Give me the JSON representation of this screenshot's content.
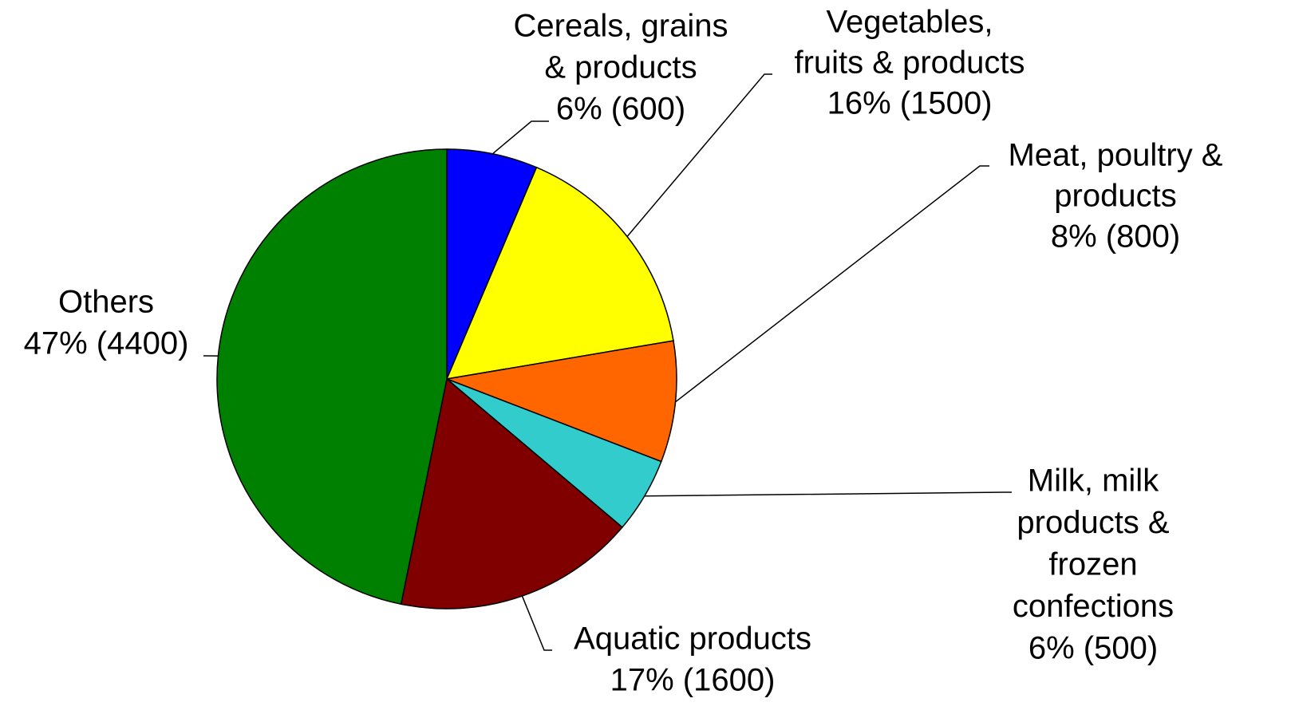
{
  "chart_data": {
    "type": "pie",
    "categories": [
      [
        "Cereals, grains",
        "& products"
      ],
      [
        "Vegetables,",
        "fruits & products"
      ],
      [
        "Meat, poultry &",
        "products"
      ],
      [
        "Milk, milk",
        "products &",
        "frozen",
        "confections"
      ],
      [
        "Aquatic products"
      ],
      [
        "Others"
      ]
    ],
    "values": [
      600,
      1500,
      800,
      500,
      1600,
      4400
    ],
    "value_labels": [
      "6% (600)",
      "16% (1500)",
      "8% (800)",
      "6% (500)",
      "17% (1600)",
      "47% (4400)"
    ],
    "colors": [
      "#0000ff",
      "#ffff00",
      "#ff6600",
      "#33cccc",
      "#800000",
      "#008000"
    ]
  }
}
